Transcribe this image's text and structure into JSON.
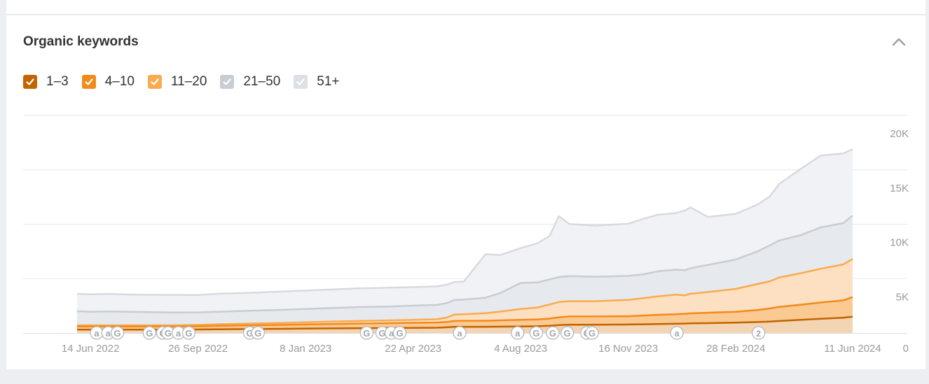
{
  "card": {
    "title": "Organic keywords"
  },
  "icons": {
    "collapse": "chevron-up-icon",
    "check": "check-icon"
  },
  "legend": [
    {
      "label": "1–3",
      "color": "#c06500",
      "checked": true
    },
    {
      "label": "4–10",
      "color": "#f28a1b",
      "checked": true
    },
    {
      "label": "11–20",
      "color": "#f9ab4e",
      "checked": true
    },
    {
      "label": "21–50",
      "color": "#c8cdd3",
      "checked": true
    },
    {
      "label": "51+",
      "color": "#dde1e6",
      "checked": true
    }
  ],
  "chart_data": {
    "type": "area",
    "stacked": true,
    "x": [
      "2022-06-01",
      "2022-06-14",
      "2022-07-01",
      "2022-08-01",
      "2022-09-01",
      "2022-09-26",
      "2022-10-15",
      "2022-11-15",
      "2022-12-15",
      "2023-01-08",
      "2023-02-01",
      "2023-03-01",
      "2023-04-01",
      "2023-04-22",
      "2023-05-15",
      "2023-05-25",
      "2023-06-01",
      "2023-06-10",
      "2023-07-01",
      "2023-07-15",
      "2023-08-04",
      "2023-08-20",
      "2023-09-01",
      "2023-09-10",
      "2023-09-20",
      "2023-10-15",
      "2023-11-16",
      "2023-12-01",
      "2023-12-15",
      "2024-01-01",
      "2024-01-10",
      "2024-01-15",
      "2024-02-01",
      "2024-02-28",
      "2024-03-20",
      "2024-04-01",
      "2024-04-10",
      "2024-05-01",
      "2024-05-20",
      "2024-06-11",
      "2024-06-20"
    ],
    "series": [
      {
        "name": "1–3",
        "values": [
          300,
          300,
          300,
          300,
          300,
          320,
          340,
          360,
          380,
          400,
          420,
          440,
          460,
          470,
          480,
          520,
          560,
          560,
          560,
          580,
          600,
          620,
          660,
          720,
          760,
          760,
          780,
          800,
          820,
          840,
          860,
          880,
          900,
          950,
          1000,
          1050,
          1100,
          1200,
          1300,
          1400,
          1500
        ]
      },
      {
        "name": "4–10",
        "values": [
          300,
          300,
          300,
          300,
          300,
          300,
          320,
          340,
          360,
          380,
          400,
          420,
          440,
          460,
          480,
          500,
          540,
          560,
          560,
          580,
          600,
          620,
          660,
          720,
          760,
          760,
          760,
          800,
          850,
          880,
          900,
          920,
          960,
          1000,
          1100,
          1200,
          1300,
          1400,
          1500,
          1600,
          1800
        ]
      },
      {
        "name": "11–20",
        "values": [
          100,
          100,
          100,
          100,
          100,
          120,
          140,
          160,
          180,
          200,
          220,
          240,
          260,
          280,
          300,
          400,
          600,
          600,
          700,
          800,
          1000,
          1100,
          1300,
          1400,
          1400,
          1400,
          1500,
          1600,
          1700,
          1800,
          1700,
          1800,
          1900,
          2100,
          2400,
          2500,
          2700,
          2900,
          3100,
          3300,
          3500
        ]
      },
      {
        "name": "21–50",
        "values": [
          1300,
          1250,
          1280,
          1230,
          1180,
          1150,
          1150,
          1180,
          1200,
          1220,
          1250,
          1280,
          1280,
          1300,
          1320,
          1330,
          1340,
          1350,
          1420,
          1700,
          2400,
          2300,
          2300,
          2300,
          2300,
          2250,
          2200,
          2200,
          2300,
          2300,
          2300,
          2350,
          2500,
          2700,
          3000,
          3300,
          3400,
          3500,
          3800,
          3800,
          4000
        ]
      },
      {
        "name": "51+",
        "values": [
          1600,
          1600,
          1600,
          1580,
          1620,
          1600,
          1650,
          1650,
          1680,
          1700,
          1700,
          1720,
          1720,
          1700,
          1700,
          1700,
          1650,
          1650,
          4000,
          3500,
          3200,
          3600,
          4000,
          5600,
          4800,
          4700,
          4800,
          5100,
          5200,
          5200,
          5500,
          5600,
          4400,
          4200,
          4300,
          4500,
          5200,
          6100,
          6600,
          6400,
          6100
        ]
      }
    ],
    "tick_labels": [
      "14 Jun 2022",
      "26 Sep 2022",
      "8 Jan 2023",
      "22 Apr 2023",
      "4 Aug 2023",
      "16 Nov 2023",
      "28 Feb 2024",
      "11 Jun 2024"
    ],
    "y_ticks": [
      "20K",
      "15K",
      "10K",
      "5K",
      "0"
    ],
    "ylim": [
      0,
      20000
    ],
    "grid": true,
    "annotations": [
      {
        "date": "2022-06-20",
        "label": "a"
      },
      {
        "date": "2022-07-01",
        "label": "a"
      },
      {
        "date": "2022-07-10",
        "label": "G"
      },
      {
        "date": "2022-08-10",
        "label": "G"
      },
      {
        "date": "2022-08-23",
        "label": "G"
      },
      {
        "date": "2022-08-28",
        "label": "G"
      },
      {
        "date": "2022-09-07",
        "label": "a"
      },
      {
        "date": "2022-09-17",
        "label": "G"
      },
      {
        "date": "2022-11-15",
        "label": "G"
      },
      {
        "date": "2022-11-23",
        "label": "G"
      },
      {
        "date": "2023-03-08",
        "label": "G"
      },
      {
        "date": "2023-03-23",
        "label": "G"
      },
      {
        "date": "2023-04-01",
        "label": "a"
      },
      {
        "date": "2023-04-09",
        "label": "G"
      },
      {
        "date": "2023-06-06",
        "label": "a"
      },
      {
        "date": "2023-08-01",
        "label": "a"
      },
      {
        "date": "2023-08-19",
        "label": "G"
      },
      {
        "date": "2023-09-04",
        "label": "G"
      },
      {
        "date": "2023-09-18",
        "label": "G"
      },
      {
        "date": "2023-10-07",
        "label": "G"
      },
      {
        "date": "2023-10-12",
        "label": "G"
      },
      {
        "date": "2024-01-02",
        "label": "a"
      },
      {
        "date": "2024-03-21",
        "label": "2"
      }
    ]
  }
}
